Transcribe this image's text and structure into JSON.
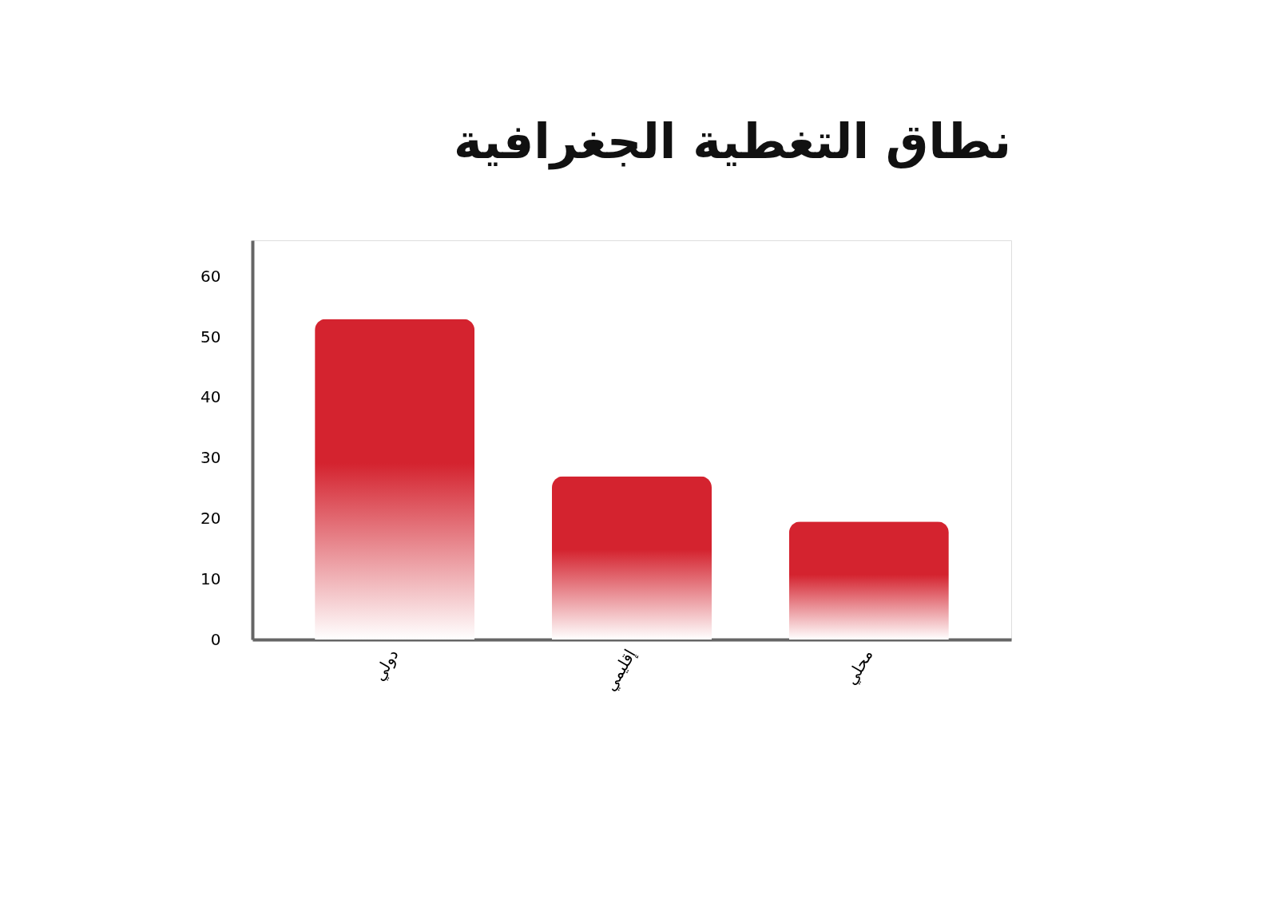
{
  "chart_data": {
    "type": "bar",
    "title": "نطاق التغطية الجغرافية",
    "categories": [
      "دولي",
      "إقليمي",
      "محلي"
    ],
    "values": [
      53,
      27,
      19.5
    ],
    "color": "#d4232f",
    "ylim": [
      0,
      66
    ],
    "yticks": [
      0,
      10,
      20,
      30,
      40,
      50,
      60
    ],
    "grid": false
  }
}
